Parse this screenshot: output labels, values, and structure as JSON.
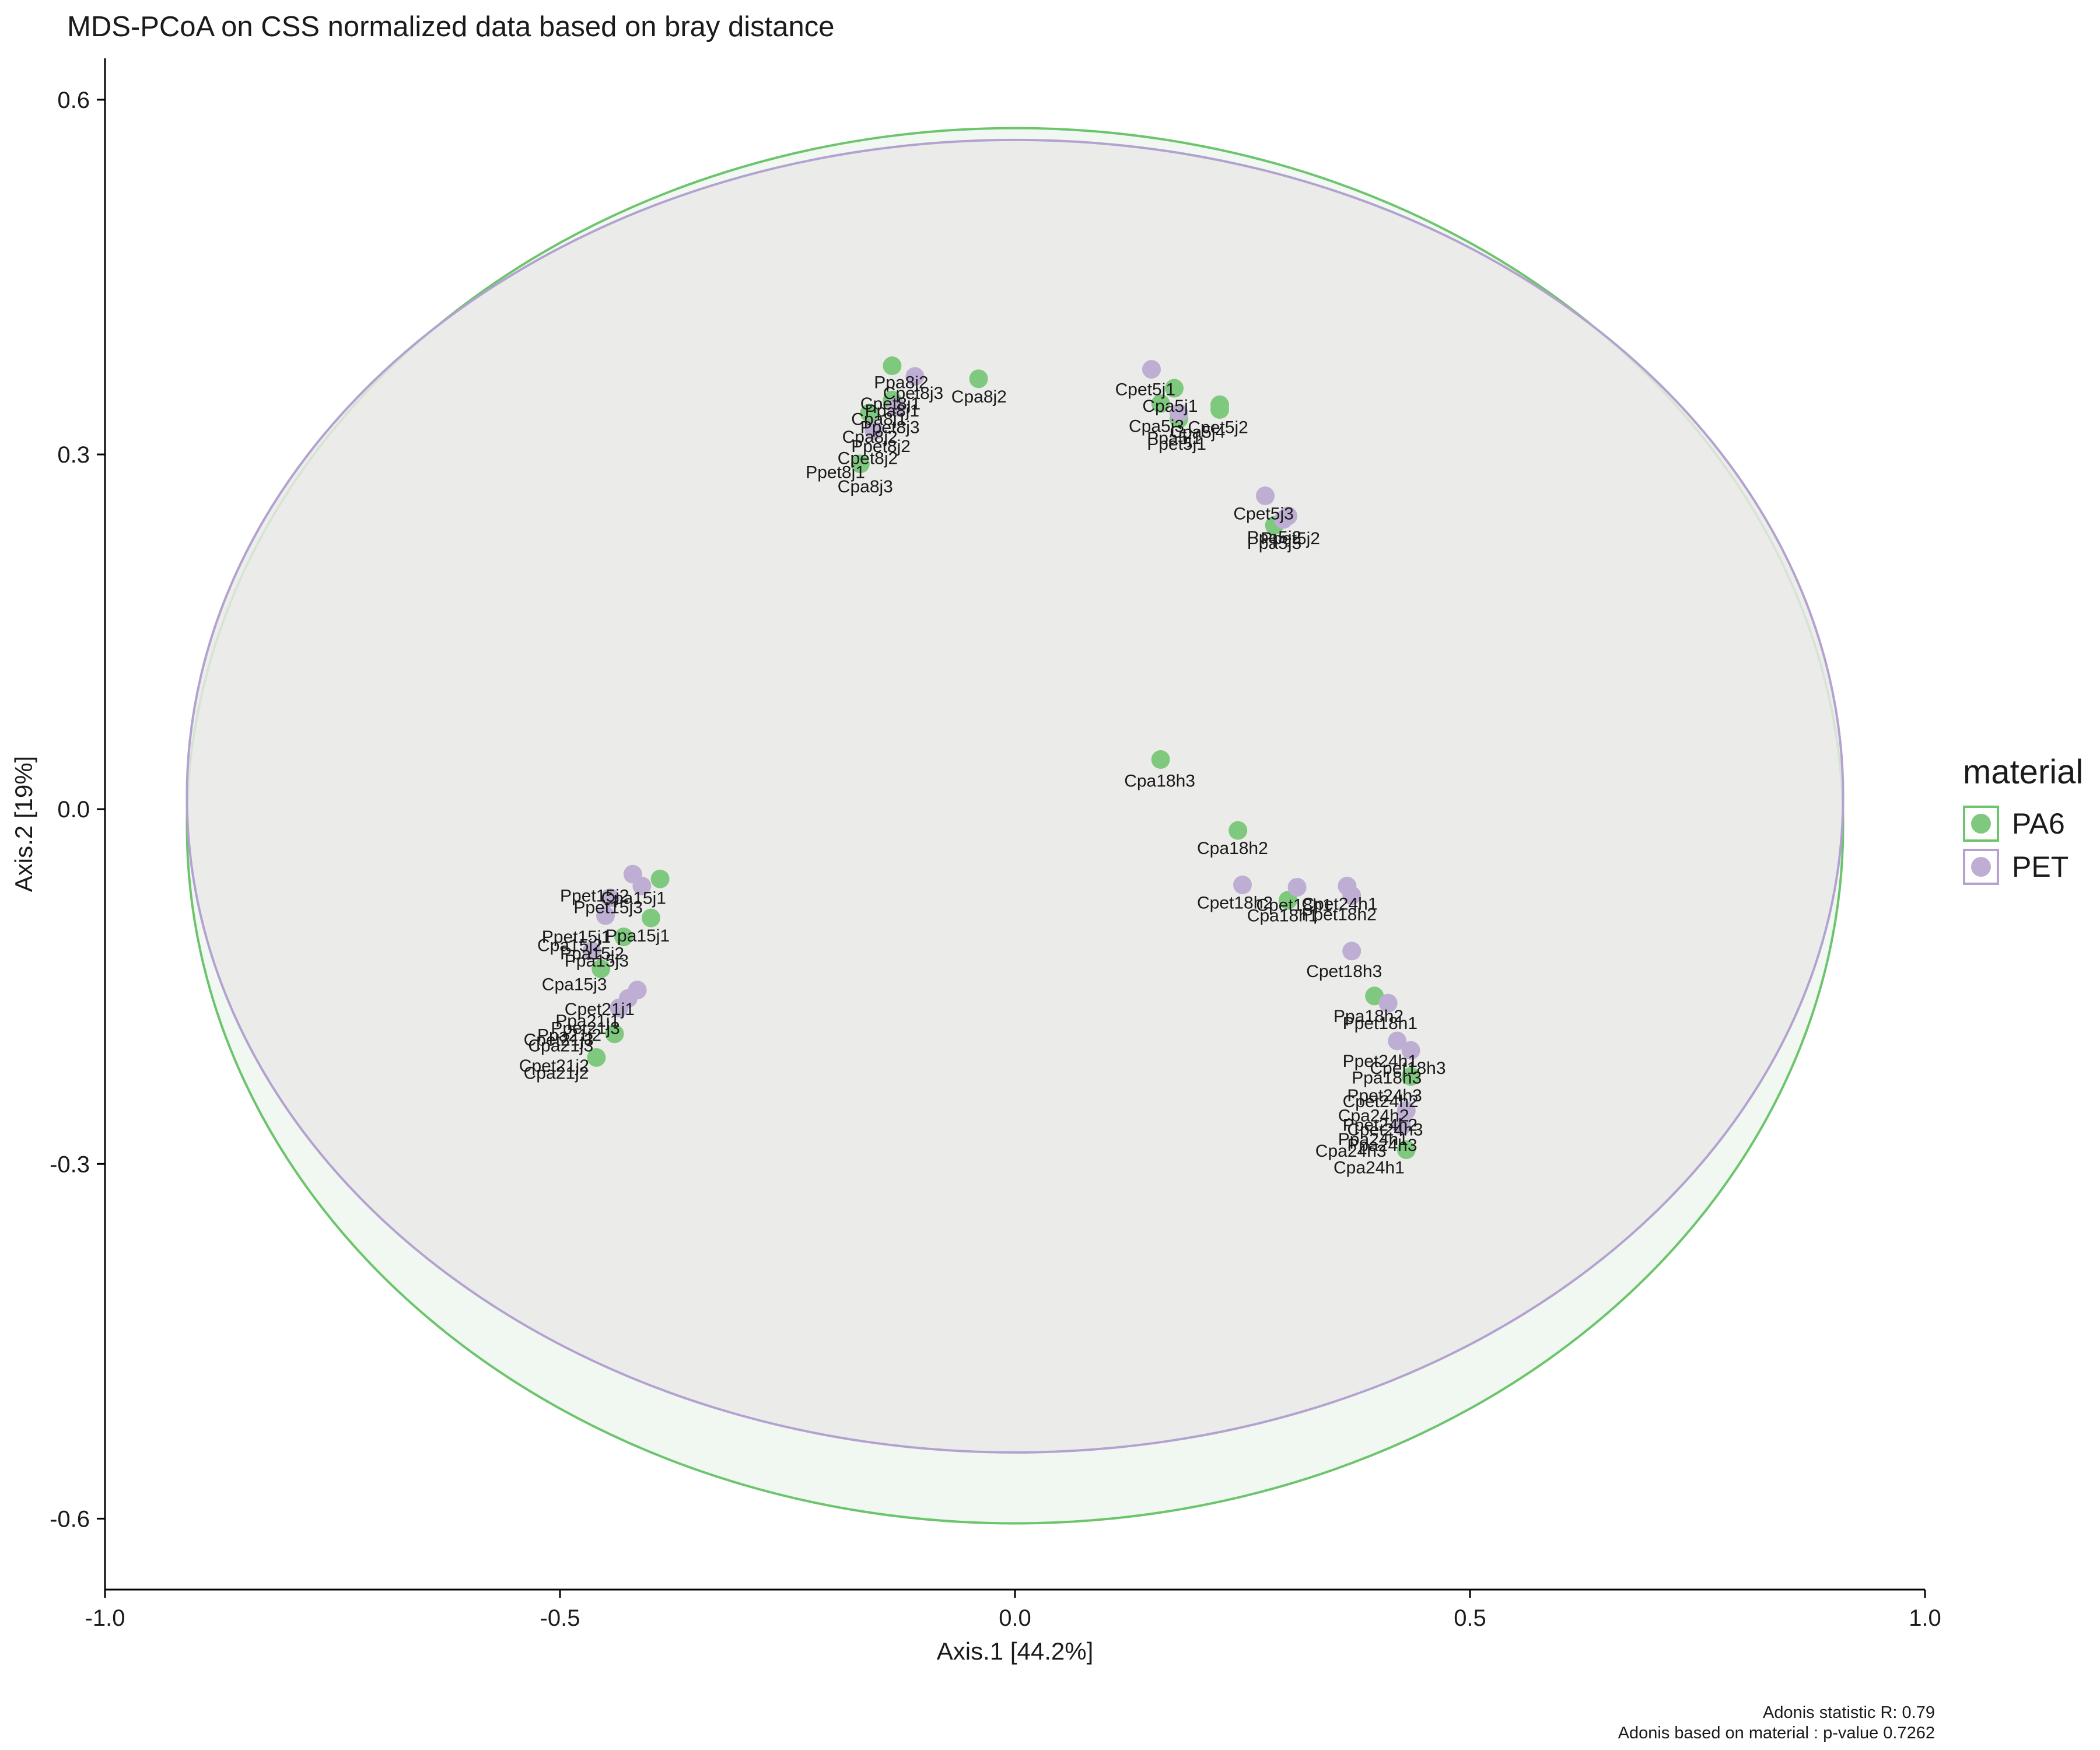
{
  "chart_data": {
    "type": "scatter",
    "title": "MDS-PCoA on CSS normalized data based on bray distance",
    "xlabel": "Axis.1   [44.2%]",
    "ylabel": "Axis.2   [19%]",
    "xlim": [
      -1.0,
      1.0
    ],
    "ylim": [
      -0.66,
      0.635
    ],
    "x_ticks": [
      -1.0,
      -0.5,
      0.0,
      0.5,
      1.0
    ],
    "x_tick_labels": [
      "-1.0",
      "-0.5",
      "0.0",
      "0.5",
      "1.0"
    ],
    "y_ticks": [
      -0.6,
      -0.3,
      0.0,
      0.3,
      0.6
    ],
    "y_tick_labels": [
      "-0.6",
      "-0.3",
      "0.0",
      "0.3",
      "0.6"
    ],
    "grid": false,
    "legend": {
      "title": "material",
      "placement": "right",
      "entries": [
        {
          "label": "PA6",
          "color": "#7fc97f",
          "border": "#6cc46c"
        },
        {
          "label": "PET",
          "color": "#beaed4",
          "border": "#b3a2d0"
        }
      ]
    },
    "series": [
      {
        "name": "PA6",
        "color": "#7fc97f",
        "points": [
          {
            "x": -0.135,
            "y": 0.375
          },
          {
            "x": -0.04,
            "y": 0.364
          },
          {
            "x": -0.135,
            "y": 0.346
          },
          {
            "x": -0.16,
            "y": 0.335
          },
          {
            "x": -0.17,
            "y": 0.292
          },
          {
            "x": 0.175,
            "y": 0.356
          },
          {
            "x": 0.225,
            "y": 0.342
          },
          {
            "x": 0.225,
            "y": 0.338
          },
          {
            "x": 0.16,
            "y": 0.343
          },
          {
            "x": 0.18,
            "y": 0.33
          },
          {
            "x": 0.285,
            "y": 0.24
          },
          {
            "x": 0.16,
            "y": 0.042
          },
          {
            "x": 0.245,
            "y": -0.018
          },
          {
            "x": 0.3,
            "y": -0.077
          },
          {
            "x": 0.395,
            "y": -0.158
          },
          {
            "x": 0.435,
            "y": -0.226
          },
          {
            "x": 0.43,
            "y": -0.288
          },
          {
            "x": -0.39,
            "y": -0.059
          },
          {
            "x": -0.4,
            "y": -0.092
          },
          {
            "x": -0.43,
            "y": -0.108
          },
          {
            "x": -0.455,
            "y": -0.135
          },
          {
            "x": -0.44,
            "y": -0.19
          },
          {
            "x": -0.46,
            "y": -0.21
          }
        ]
      },
      {
        "name": "PET",
        "color": "#beaed4",
        "points": [
          {
            "x": -0.11,
            "y": 0.366
          },
          {
            "x": -0.13,
            "y": 0.34
          },
          {
            "x": -0.155,
            "y": 0.32
          },
          {
            "x": 0.15,
            "y": 0.372
          },
          {
            "x": 0.18,
            "y": 0.335
          },
          {
            "x": 0.275,
            "y": 0.265
          },
          {
            "x": 0.3,
            "y": 0.248
          },
          {
            "x": 0.295,
            "y": 0.245
          },
          {
            "x": 0.25,
            "y": -0.064
          },
          {
            "x": 0.31,
            "y": -0.066
          },
          {
            "x": 0.365,
            "y": -0.065
          },
          {
            "x": 0.37,
            "y": -0.073
          },
          {
            "x": 0.37,
            "y": -0.12
          },
          {
            "x": 0.41,
            "y": -0.164
          },
          {
            "x": 0.42,
            "y": -0.196
          },
          {
            "x": 0.435,
            "y": -0.204
          },
          {
            "x": 0.43,
            "y": -0.255
          },
          {
            "x": 0.425,
            "y": -0.268
          },
          {
            "x": -0.42,
            "y": -0.055
          },
          {
            "x": -0.41,
            "y": -0.065
          },
          {
            "x": -0.445,
            "y": -0.075
          },
          {
            "x": -0.45,
            "y": -0.09
          },
          {
            "x": -0.465,
            "y": -0.12
          },
          {
            "x": -0.415,
            "y": -0.153
          },
          {
            "x": -0.425,
            "y": -0.16
          },
          {
            "x": -0.435,
            "y": -0.168
          }
        ]
      }
    ],
    "ellipses": [
      {
        "series": "PA6",
        "cx": 0.0,
        "cy": -0.014,
        "rx": 0.91,
        "ry": 0.59,
        "fill": "#eef6ee",
        "stroke": "#6cc46c"
      },
      {
        "series": "PET",
        "cx": 0.0,
        "cy": 0.011,
        "rx": 0.91,
        "ry": 0.555,
        "fill": "#eaeae8",
        "stroke": "#b3a2d0"
      }
    ],
    "annotations": [
      {
        "text": "Ppa8j2",
        "x": -0.155,
        "y": 0.356
      },
      {
        "text": "Cpet8j3",
        "x": -0.145,
        "y": 0.347
      },
      {
        "text": "Cpa8j2",
        "x": -0.07,
        "y": 0.344
      },
      {
        "text": "Cpet8j1",
        "x": -0.17,
        "y": 0.338
      },
      {
        "text": "Ppa8j1",
        "x": -0.165,
        "y": 0.332
      },
      {
        "text": "Cpa8j1",
        "x": -0.18,
        "y": 0.325
      },
      {
        "text": "Ppet8j3",
        "x": -0.17,
        "y": 0.318
      },
      {
        "text": "Cpa8j2",
        "x": -0.19,
        "y": 0.31
      },
      {
        "text": "Ppet8j2",
        "x": -0.18,
        "y": 0.302
      },
      {
        "text": "Cpet8j2",
        "x": -0.195,
        "y": 0.292
      },
      {
        "text": "Ppet8j1",
        "x": -0.23,
        "y": 0.28
      },
      {
        "text": "Cpa8j3",
        "x": -0.195,
        "y": 0.268
      },
      {
        "text": "Cpet5j1",
        "x": 0.11,
        "y": 0.35
      },
      {
        "text": "Cpa5j1",
        "x": 0.14,
        "y": 0.336
      },
      {
        "text": "Cpa5j3",
        "x": 0.125,
        "y": 0.319
      },
      {
        "text": "Cpet5j2",
        "x": 0.19,
        "y": 0.318
      },
      {
        "text": "Cpa5j4",
        "x": 0.17,
        "y": 0.314
      },
      {
        "text": "Ppa5j1",
        "x": 0.145,
        "y": 0.309
      },
      {
        "text": "Ppet5j1",
        "x": 0.145,
        "y": 0.304
      },
      {
        "text": "Cpet5j3",
        "x": 0.24,
        "y": 0.245
      },
      {
        "text": "Ppa5j2",
        "x": 0.255,
        "y": 0.225
      },
      {
        "text": "Ppet5j2",
        "x": 0.27,
        "y": 0.224
      },
      {
        "text": "Ppa5j3",
        "x": 0.255,
        "y": 0.22
      },
      {
        "text": "Cpa18h3",
        "x": 0.12,
        "y": 0.019
      },
      {
        "text": "Cpa18h2",
        "x": 0.2,
        "y": -0.038
      },
      {
        "text": "Cpet18h2",
        "x": 0.2,
        "y": -0.084
      },
      {
        "text": "Cpet18h1",
        "x": 0.265,
        "y": -0.086
      },
      {
        "text": "Cpet24h1",
        "x": 0.315,
        "y": -0.085
      },
      {
        "text": "Cpa18h1",
        "x": 0.255,
        "y": -0.095
      },
      {
        "text": "Ppet18h2",
        "x": 0.315,
        "y": -0.094
      },
      {
        "text": "Cpet18h3",
        "x": 0.32,
        "y": -0.142
      },
      {
        "text": "Ppa18h2",
        "x": 0.35,
        "y": -0.18
      },
      {
        "text": "Ppet18h1",
        "x": 0.36,
        "y": -0.186
      },
      {
        "text": "Ppet24h1",
        "x": 0.36,
        "y": -0.218
      },
      {
        "text": "Cpet18h3",
        "x": 0.39,
        "y": -0.224
      },
      {
        "text": "Ppa18h3",
        "x": 0.37,
        "y": -0.232
      },
      {
        "text": "Ppet24h3",
        "x": 0.365,
        "y": -0.247
      },
      {
        "text": "Cpet24h2",
        "x": 0.36,
        "y": -0.252
      },
      {
        "text": "Cpa24h2",
        "x": 0.355,
        "y": -0.264
      },
      {
        "text": "Ppet24h2",
        "x": 0.36,
        "y": -0.272
      },
      {
        "text": "Cpet24h3",
        "x": 0.365,
        "y": -0.276
      },
      {
        "text": "Ppa24h1",
        "x": 0.355,
        "y": -0.284
      },
      {
        "text": "Ppa24h3",
        "x": 0.365,
        "y": -0.289
      },
      {
        "text": "Cpa24h3",
        "x": 0.33,
        "y": -0.294
      },
      {
        "text": "Cpa24h1",
        "x": 0.35,
        "y": -0.308
      },
      {
        "text": "Ppet15j2",
        "x": -0.5,
        "y": -0.078
      },
      {
        "text": "Cpa15j1",
        "x": -0.455,
        "y": -0.08
      },
      {
        "text": "Ppet15j3",
        "x": -0.485,
        "y": -0.088
      },
      {
        "text": "Ppet15j1",
        "x": -0.52,
        "y": -0.113
      },
      {
        "text": "Ppa15j1",
        "x": -0.45,
        "y": -0.112
      },
      {
        "text": "Cpa15j2",
        "x": -0.525,
        "y": -0.12
      },
      {
        "text": "Ppa15j2",
        "x": -0.5,
        "y": -0.127
      },
      {
        "text": "Ppa15j3",
        "x": -0.495,
        "y": -0.133
      },
      {
        "text": "Cpa15j3",
        "x": -0.52,
        "y": -0.153
      },
      {
        "text": "Cpet21j1",
        "x": -0.495,
        "y": -0.174
      },
      {
        "text": "Ppa21j1",
        "x": -0.505,
        "y": -0.184
      },
      {
        "text": "Ppet21j3",
        "x": -0.51,
        "y": -0.19
      },
      {
        "text": "Ppa21j2",
        "x": -0.525,
        "y": -0.196
      },
      {
        "text": "Cpet21j3",
        "x": -0.54,
        "y": -0.2
      },
      {
        "text": "Cpa21j3",
        "x": -0.535,
        "y": -0.205
      },
      {
        "text": "Cpet21j2",
        "x": -0.545,
        "y": -0.222
      },
      {
        "text": "Cpa21j2",
        "x": -0.54,
        "y": -0.228
      }
    ]
  },
  "footnotes": {
    "line1": "Adonis statistic R: 0.79",
    "line2": "Adonis based on  material : p-value 0.7262"
  }
}
